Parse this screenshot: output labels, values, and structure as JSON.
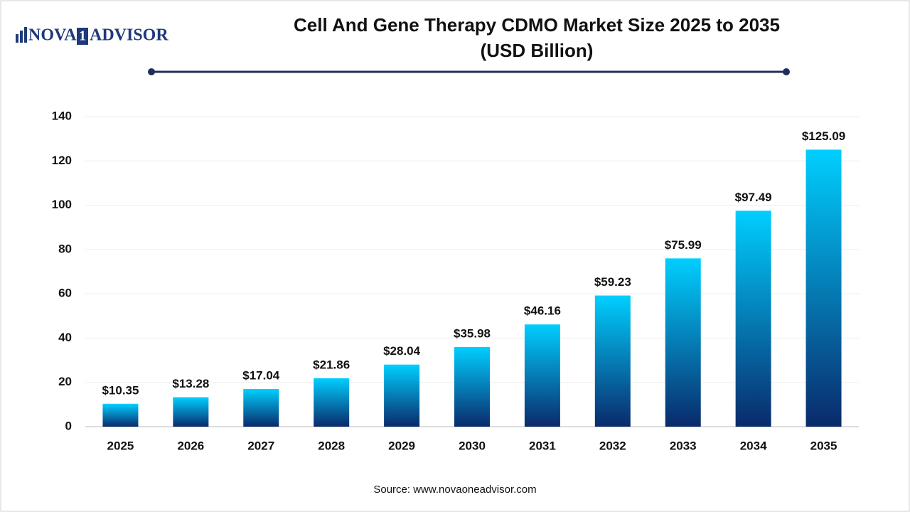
{
  "logo": {
    "left": "NOVA",
    "mid": "1",
    "right": "ADVISOR"
  },
  "source": "Source: www.novaoneadvisor.com",
  "chart_data": {
    "type": "bar",
    "title": "Cell And Gene Therapy CDMO Market Size 2025 to 2035",
    "subtitle": "(USD Billion)",
    "categories": [
      "2025",
      "2026",
      "2027",
      "2028",
      "2029",
      "2030",
      "2031",
      "2032",
      "2033",
      "2034",
      "2035"
    ],
    "values": [
      10.35,
      13.28,
      17.04,
      21.86,
      28.04,
      35.98,
      46.16,
      59.23,
      75.99,
      97.49,
      125.09
    ],
    "value_labels": [
      "$10.35",
      "$13.28",
      "$17.04",
      "$21.86",
      "$28.04",
      "$35.98",
      "$46.16",
      "$59.23",
      "$75.99",
      "$97.49",
      "$125.09"
    ],
    "color": [
      "#00cfff",
      "#0a2a6b"
    ],
    "ylim": [
      0,
      140
    ],
    "yticks": [
      0,
      20,
      40,
      60,
      80,
      100,
      120,
      140
    ],
    "grid": true
  }
}
